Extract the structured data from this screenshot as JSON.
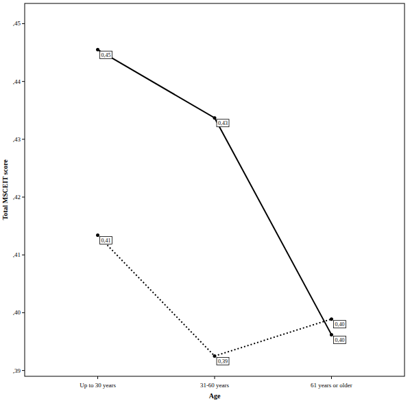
{
  "chart_data": {
    "type": "line",
    "x_label": "Age",
    "y_label": "Total MSCEIT score",
    "categories": [
      "Up to 30 years",
      "31-60 years",
      "61 years or older"
    ],
    "series": [
      {
        "color": "#000000",
        "line_style": "solid",
        "marker": "circle",
        "values": [
          0.4455,
          0.4337,
          0.3962
        ],
        "value_labels": [
          "0,45",
          "0,43",
          "0,40"
        ]
      },
      {
        "color": "#000000",
        "line_style": "dotted",
        "marker": "circle",
        "values": [
          0.4134,
          0.3925,
          0.3989
        ],
        "value_labels": [
          "0,41",
          "0,39",
          "0,40"
        ]
      }
    ],
    "ylim": [
      0.389,
      0.4535
    ],
    "yticks": [
      {
        "value": 0.39,
        "label": ",39"
      },
      {
        "value": 0.4,
        "label": ",40"
      },
      {
        "value": 0.41,
        "label": ",41"
      },
      {
        "value": 0.42,
        "label": ",42"
      },
      {
        "value": 0.43,
        "label": ",43"
      },
      {
        "value": 0.44,
        "label": ",44"
      },
      {
        "value": 0.45,
        "label": ",45"
      }
    ],
    "data_labels": true,
    "grid": false
  }
}
